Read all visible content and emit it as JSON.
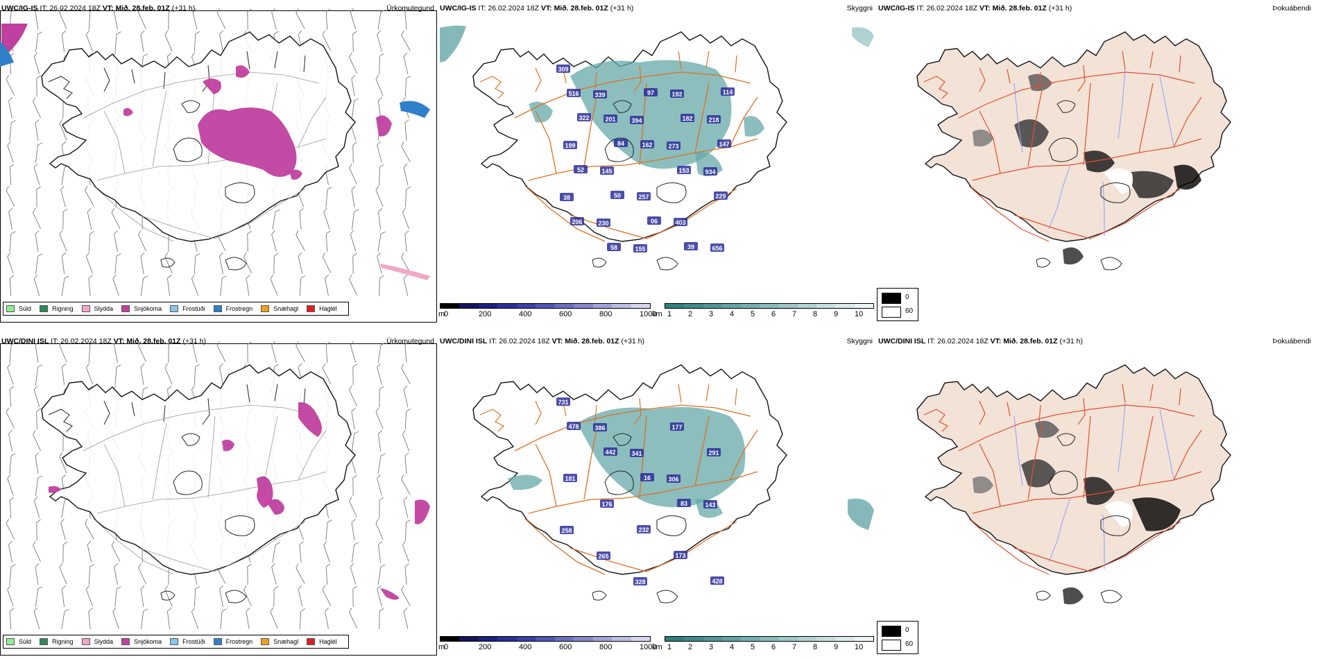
{
  "rows": [
    {
      "model": "UWC/IG-IS",
      "it_label": "IT:",
      "it_value": "26.02.2024 18Z",
      "vt_label": "VT:",
      "vt_value": "Mið. 28.feb. 01Z",
      "lead": "(+31 h)",
      "titles": [
        "Úrkomutegund",
        "Skyggni",
        "Þokuábendi"
      ],
      "cloud_numbers": [
        "309",
        "339",
        "394",
        "273",
        "934",
        "38",
        "230",
        "155",
        "192",
        "218",
        "199",
        "145",
        "257",
        "403",
        "656",
        "516",
        "201",
        "162",
        "153",
        "229",
        "206",
        "58",
        "97",
        "182",
        "147",
        "52",
        "50",
        "06",
        "39",
        "114",
        "322",
        "84"
      ]
    },
    {
      "model": "UWC/DINI ISL",
      "it_label": "IT:",
      "it_value": "26.02.2024 18Z",
      "vt_label": "VT:",
      "vt_value": "Mið. 28.feb. 01Z",
      "lead": "(+31 h)",
      "titles": [
        "Úrkomutegund",
        "Skyggni",
        "Þokuábendi"
      ],
      "cloud_numbers": [
        "731",
        "386",
        "341",
        "306",
        "143",
        "258",
        "265",
        "328",
        "177",
        "291",
        "181",
        "176",
        "232",
        "173",
        "428",
        "478",
        "442",
        "16",
        "83"
      ]
    }
  ],
  "precip_legend": [
    {
      "label": "Súld",
      "color": "#90ee90"
    },
    {
      "label": "Rigning",
      "color": "#2e8b57"
    },
    {
      "label": "Slydda",
      "color": "#f4a6c8"
    },
    {
      "label": "Snjókoma",
      "color": "#c040a0"
    },
    {
      "label": "Frostúði",
      "color": "#87c5f0"
    },
    {
      "label": "Frostregn",
      "color": "#2f7fc9"
    },
    {
      "label": "Snæhagl",
      "color": "#f0a020"
    },
    {
      "label": "Haglél",
      "color": "#e02020"
    }
  ],
  "height_bar": {
    "unit": "m",
    "ticks": [
      "0",
      "200",
      "400",
      "600",
      "800",
      "1000"
    ],
    "colors": [
      "#000000",
      "#15155e",
      "#1e2080",
      "#2b2f9a",
      "#3b40a8",
      "#5056b5",
      "#6a6fc0",
      "#8587cc",
      "#a0a2d8",
      "#bcbde3",
      "#d6d7ee"
    ]
  },
  "vis_bar": {
    "unit": "km",
    "ticks": [
      "1",
      "2",
      "3",
      "4",
      "5",
      "6",
      "7",
      "8",
      "9",
      "10"
    ],
    "colors": [
      "#2f7f7f",
      "#3f8b8b",
      "#509797",
      "#62a3a3",
      "#75afaf",
      "#88bbbb",
      "#9cc7c7",
      "#b1d3d3",
      "#c6dfdf",
      "#dbeaea",
      "#eef5f5"
    ]
  },
  "fog_legend": {
    "values": [
      "0",
      "60"
    ],
    "colors": [
      "#000000",
      "#ffffff"
    ]
  },
  "colors": {
    "coast": "#111111",
    "roads": "#e07020",
    "land_fog": "#f3e2d6",
    "rivers": "#8aa0ff",
    "snow": "#c040a0"
  }
}
